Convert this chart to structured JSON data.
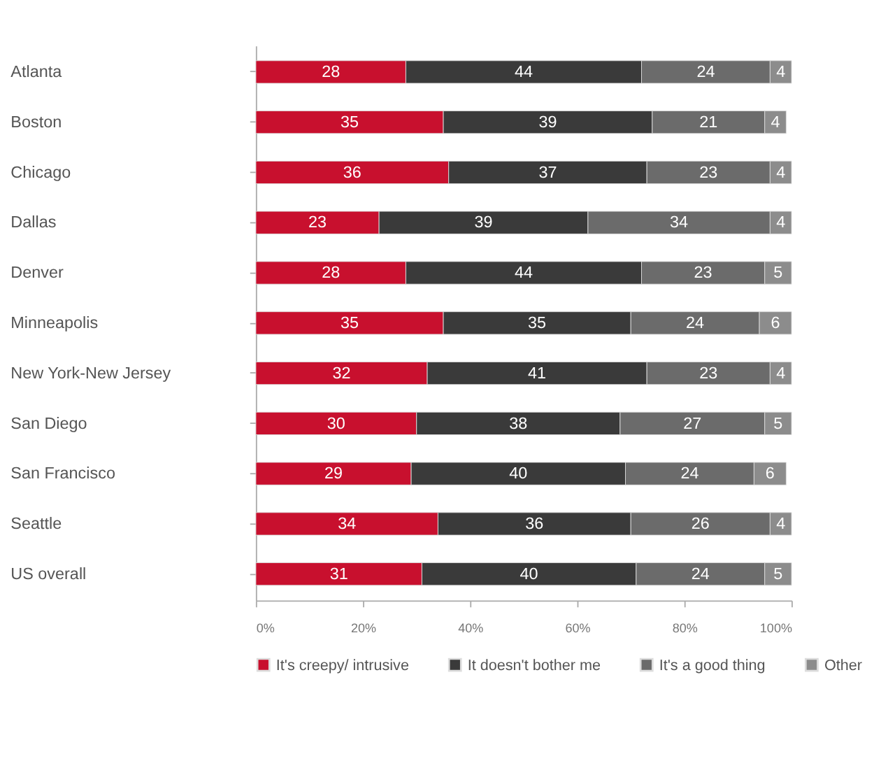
{
  "chart_data": {
    "type": "bar",
    "orientation": "horizontal",
    "stacked": true,
    "data_labels": true,
    "legend": "bottom",
    "grid": false,
    "categories": [
      "Atlanta",
      "Boston",
      "Chicago",
      "Dallas",
      "Denver",
      "Minneapolis",
      "New York-New Jersey",
      "San Diego",
      "San Francisco",
      "Seattle",
      "US overall"
    ],
    "series": [
      {
        "name": "It's creepy/ intrusive",
        "color": "#c8102e",
        "values": [
          28,
          35,
          36,
          23,
          28,
          35,
          32,
          30,
          29,
          34,
          31
        ]
      },
      {
        "name": "It doesn't bother me",
        "color": "#3a3a3a",
        "values": [
          44,
          39,
          37,
          39,
          44,
          35,
          41,
          38,
          40,
          36,
          40
        ]
      },
      {
        "name": "It's a good thing",
        "color": "#6b6b6b",
        "values": [
          24,
          21,
          23,
          34,
          23,
          24,
          23,
          27,
          24,
          26,
          24
        ]
      },
      {
        "name": "Other",
        "color": "#8c8c8c",
        "values": [
          4,
          4,
          4,
          4,
          5,
          6,
          4,
          5,
          6,
          4,
          5
        ]
      }
    ],
    "xlim": [
      0,
      100
    ],
    "xticks": [
      {
        "value": 0,
        "label": "0%"
      },
      {
        "value": 20,
        "label": "20%"
      },
      {
        "value": 40,
        "label": "40%"
      },
      {
        "value": 60,
        "label": "60%"
      },
      {
        "value": 80,
        "label": "80%"
      },
      {
        "value": 100,
        "label": "100%"
      }
    ]
  }
}
